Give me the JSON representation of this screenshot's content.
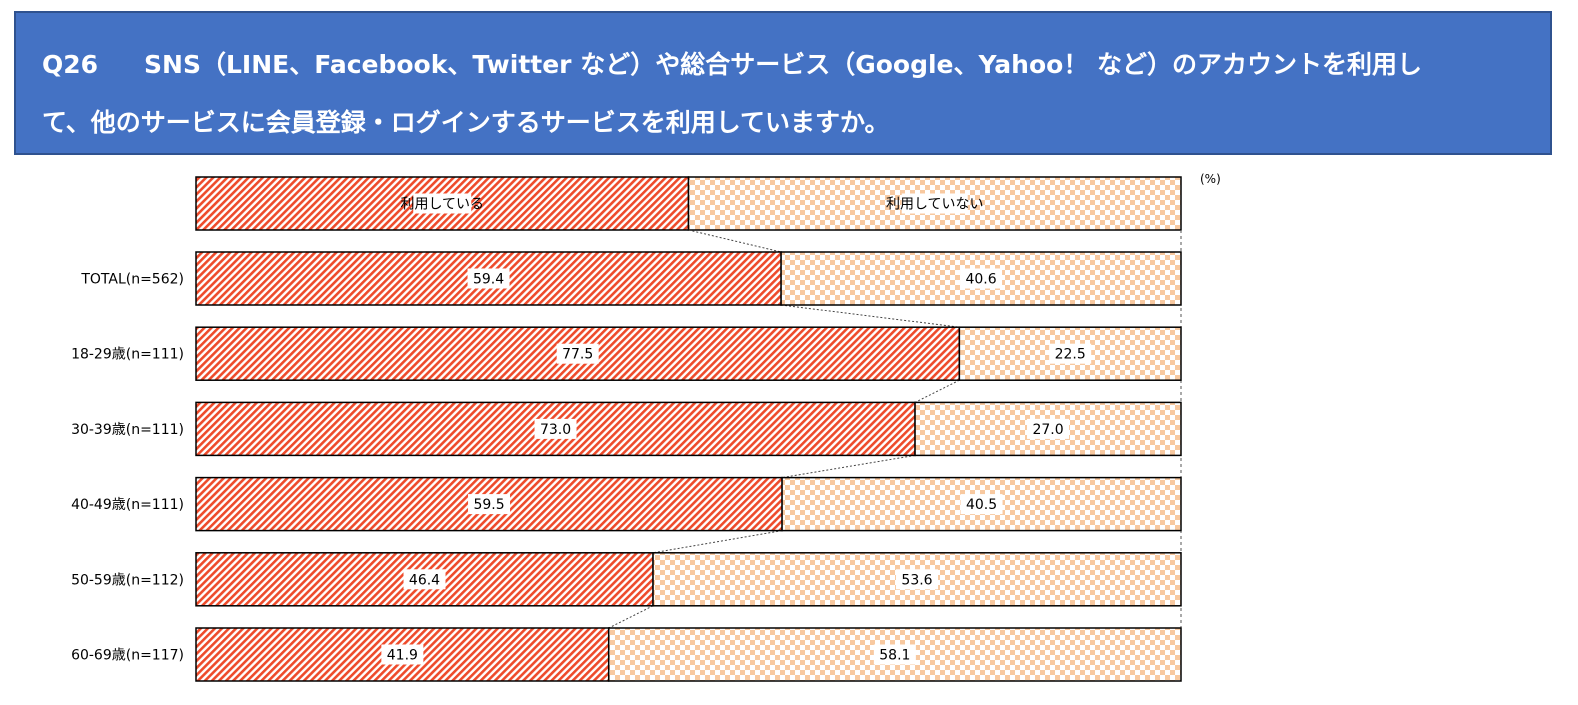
{
  "header": {
    "question_number": "Q26",
    "line1_text": "SNS（LINE、Facebook、Twitter など）や総合サービス（Google、Yahoo！ など）のアカウントを利用し",
    "line2_text": "て、他のサービスに会員登録・ログインするサービスを利用していますか。"
  },
  "colors": {
    "header_bg": "#4472c4",
    "used_stripe": "#ee4b2b",
    "not_used_check": "#f8c9a0",
    "bar_border": "#000000"
  },
  "chart_data": {
    "type": "bar",
    "orientation": "horizontal",
    "stacked": "100%",
    "unit": "(%)",
    "categories": [
      "TOTAL(n=562)",
      "18-29歳(n=111)",
      "30-39歳(n=111)",
      "40-49歳(n=111)",
      "50-59歳(n=112)",
      "60-69歳(n=117)"
    ],
    "series": [
      {
        "name": "利用している",
        "values": [
          59.4,
          77.5,
          73.0,
          59.5,
          46.4,
          41.9
        ]
      },
      {
        "name": "利用していない",
        "values": [
          40.6,
          22.5,
          27.0,
          40.5,
          53.6,
          58.1
        ]
      }
    ],
    "value_labels": [
      [
        "59.4",
        "77.5",
        "73.0",
        "59.5",
        "46.4",
        "41.9"
      ],
      [
        "40.6",
        "22.5",
        "27.0",
        "40.5",
        "53.6",
        "58.1"
      ]
    ],
    "legend_bar_split": 50,
    "legend_placement": "top",
    "xlim": [
      0,
      100
    ],
    "series_connector_lines": true
  }
}
